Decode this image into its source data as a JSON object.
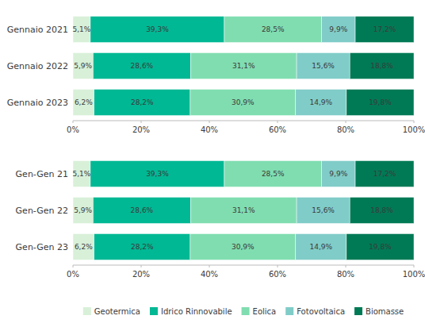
{
  "chart_data": [
    {
      "type": "bar",
      "orientation": "horizontal",
      "stacked": true,
      "data_labels": true,
      "grid": false,
      "categories": [
        "Gennaio 2021",
        "Gennaio 2022",
        "Gennaio 2023"
      ],
      "series": [
        {
          "name": "Geotermica",
          "color": "#d8f0d8",
          "values": [
            5.1,
            5.9,
            6.2
          ],
          "value_labels": [
            "5,1%",
            "5,9%",
            "6,2%"
          ]
        },
        {
          "name": "Idrico Rinnovabile",
          "color": "#00b894",
          "values": [
            39.3,
            28.6,
            28.2
          ],
          "value_labels": [
            "39,3%",
            "28,6%",
            "28,2%"
          ]
        },
        {
          "name": "Eolica",
          "color": "#80ddb0",
          "values": [
            28.5,
            31.1,
            30.9
          ],
          "value_labels": [
            "28,5%",
            "31,1%",
            "30,9%"
          ]
        },
        {
          "name": "Fotovoltaica",
          "color": "#80ccc8",
          "values": [
            9.9,
            15.6,
            14.9
          ],
          "value_labels": [
            "9,9%",
            "15,6%",
            "14,9%"
          ]
        },
        {
          "name": "Biomasse",
          "color": "#007a55",
          "values": [
            17.2,
            18.8,
            19.8
          ],
          "value_labels": [
            "17,2%",
            "18,8%",
            "19,8%"
          ]
        }
      ],
      "xlim": [
        0,
        100
      ],
      "xticks": [
        {
          "value": 0,
          "label": "0%"
        },
        {
          "value": 20,
          "label": "20%"
        },
        {
          "value": 40,
          "label": "40%"
        },
        {
          "value": 60,
          "label": "60%"
        },
        {
          "value": 80,
          "label": "80%"
        },
        {
          "value": 100,
          "label": "100%"
        }
      ]
    },
    {
      "type": "bar",
      "orientation": "horizontal",
      "stacked": true,
      "data_labels": true,
      "grid": false,
      "legend": "bottom",
      "categories": [
        "Gen-Gen 21",
        "Gen-Gen 22",
        "Gen-Gen 23"
      ],
      "series": [
        {
          "name": "Geotermica",
          "color": "#d8f0d8",
          "values": [
            5.1,
            5.9,
            6.2
          ],
          "value_labels": [
            "5,1%",
            "5,9%",
            "6,2%"
          ]
        },
        {
          "name": "Idrico Rinnovabile",
          "color": "#00b894",
          "values": [
            39.3,
            28.6,
            28.2
          ],
          "value_labels": [
            "39,3%",
            "28,6%",
            "28,2%"
          ]
        },
        {
          "name": "Eolica",
          "color": "#80ddb0",
          "values": [
            28.5,
            31.1,
            30.9
          ],
          "value_labels": [
            "28,5%",
            "31,1%",
            "30,9%"
          ]
        },
        {
          "name": "Fotovoltaica",
          "color": "#80ccc8",
          "values": [
            9.9,
            15.6,
            14.9
          ],
          "value_labels": [
            "9,9%",
            "15,6%",
            "14,9%"
          ]
        },
        {
          "name": "Biomasse",
          "color": "#007a55",
          "values": [
            17.2,
            18.8,
            19.8
          ],
          "value_labels": [
            "17,2%",
            "18,8%",
            "19,8%"
          ]
        }
      ],
      "xlim": [
        0,
        100
      ],
      "xticks": [
        {
          "value": 0,
          "label": "0%"
        },
        {
          "value": 20,
          "label": "20%"
        },
        {
          "value": 40,
          "label": "40%"
        },
        {
          "value": 60,
          "label": "60%"
        },
        {
          "value": 80,
          "label": "80%"
        },
        {
          "value": 100,
          "label": "100%"
        }
      ]
    }
  ]
}
